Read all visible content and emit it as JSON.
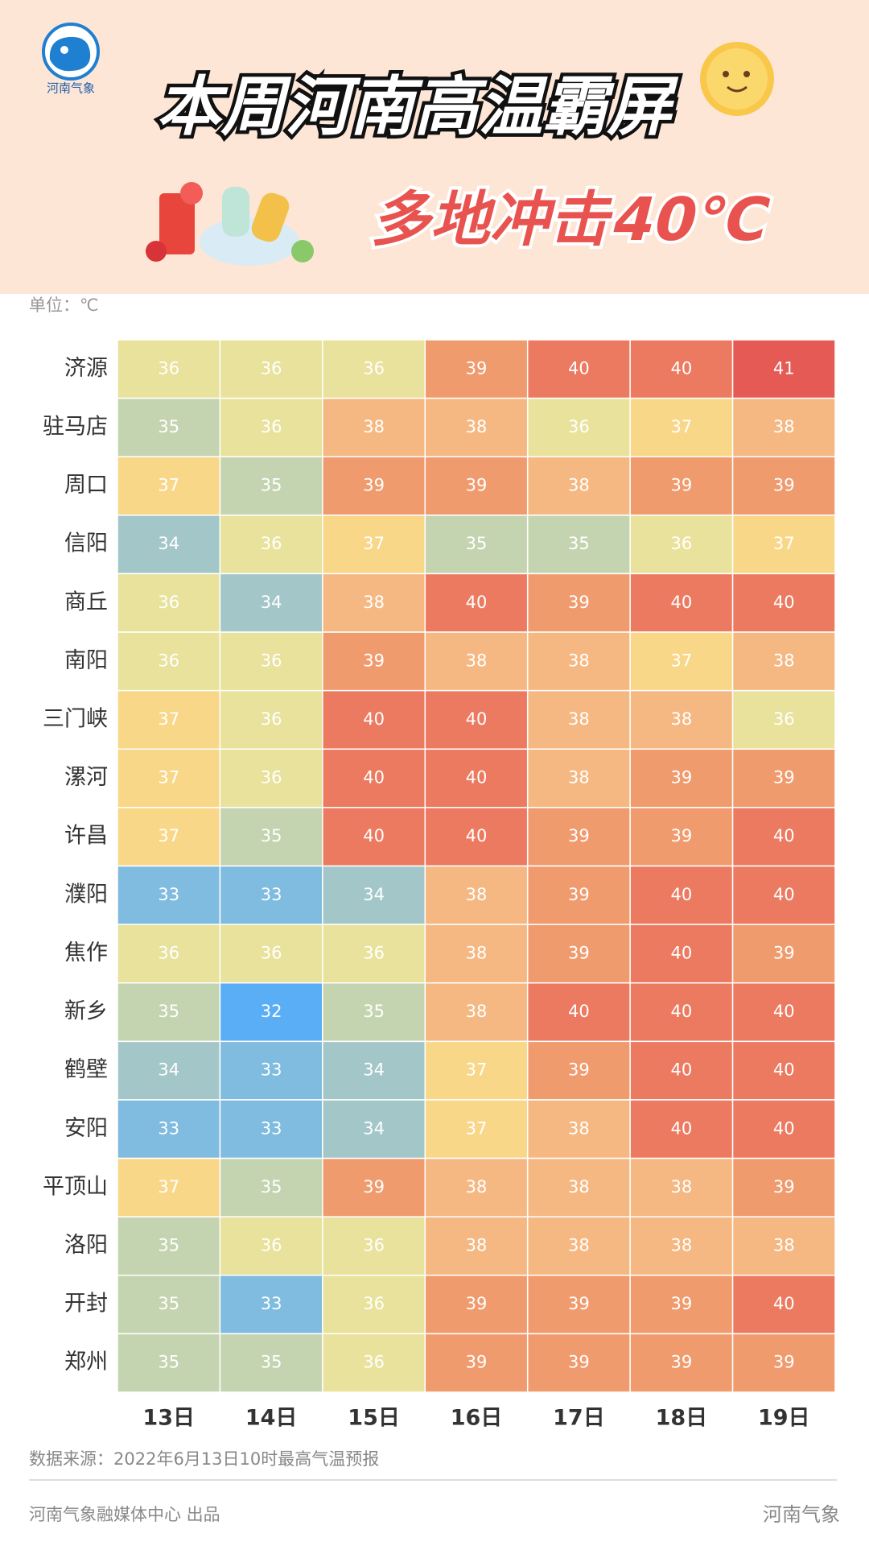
{
  "chart_data": {
    "type": "heatmap",
    "logo_text": "河南气象",
    "title": "本周河南高温霸屏",
    "subtitle": "多地冲击40℃",
    "unit": "单位：℃",
    "source": "数据来源：2022年6月13日10时最高气温预报",
    "footer": "河南气象融媒体中心 出品",
    "watermark": "河南气象",
    "columns": [
      "13日",
      "14日",
      "15日",
      "16日",
      "17日",
      "18日",
      "19日"
    ],
    "rows": [
      "济源",
      "驻马店",
      "周口",
      "信阳",
      "商丘",
      "南阳",
      "三门峡",
      "漯河",
      "许昌",
      "濮阳",
      "焦作",
      "新乡",
      "鹤壁",
      "安阳",
      "平顶山",
      "洛阳",
      "开封",
      "郑州"
    ],
    "values": [
      [
        36,
        36,
        36,
        39,
        40,
        40,
        41
      ],
      [
        35,
        36,
        38,
        38,
        36,
        37,
        38
      ],
      [
        37,
        35,
        39,
        39,
        38,
        39,
        39
      ],
      [
        34,
        36,
        37,
        35,
        35,
        36,
        37
      ],
      [
        36,
        34,
        38,
        40,
        39,
        40,
        40
      ],
      [
        36,
        36,
        39,
        38,
        38,
        37,
        38
      ],
      [
        37,
        36,
        40,
        40,
        38,
        38,
        36
      ],
      [
        37,
        36,
        40,
        40,
        38,
        39,
        39
      ],
      [
        37,
        35,
        40,
        40,
        39,
        39,
        40
      ],
      [
        33,
        33,
        34,
        38,
        39,
        40,
        40
      ],
      [
        36,
        36,
        36,
        38,
        39,
        40,
        39
      ],
      [
        35,
        32,
        35,
        38,
        40,
        40,
        40
      ],
      [
        34,
        33,
        34,
        37,
        39,
        40,
        40
      ],
      [
        33,
        33,
        34,
        37,
        38,
        40,
        40
      ],
      [
        37,
        35,
        39,
        38,
        38,
        38,
        39
      ],
      [
        35,
        36,
        36,
        38,
        38,
        38,
        38
      ],
      [
        35,
        33,
        36,
        39,
        39,
        39,
        40
      ],
      [
        35,
        35,
        36,
        39,
        39,
        39,
        39
      ]
    ],
    "color_stops": [
      {
        "value": 32,
        "color": "#5aaef5"
      },
      {
        "value": 33,
        "color": "#80bbe0"
      },
      {
        "value": 34,
        "color": "#a3c7c9"
      },
      {
        "value": 35,
        "color": "#c5d4b0"
      },
      {
        "value": 36,
        "color": "#e9e29c"
      },
      {
        "value": 37,
        "color": "#f9d789"
      },
      {
        "value": 38,
        "color": "#f5b882"
      },
      {
        "value": 39,
        "color": "#f09b6e"
      },
      {
        "value": 40,
        "color": "#ec7a60"
      },
      {
        "value": 41,
        "color": "#e65a55"
      }
    ]
  }
}
